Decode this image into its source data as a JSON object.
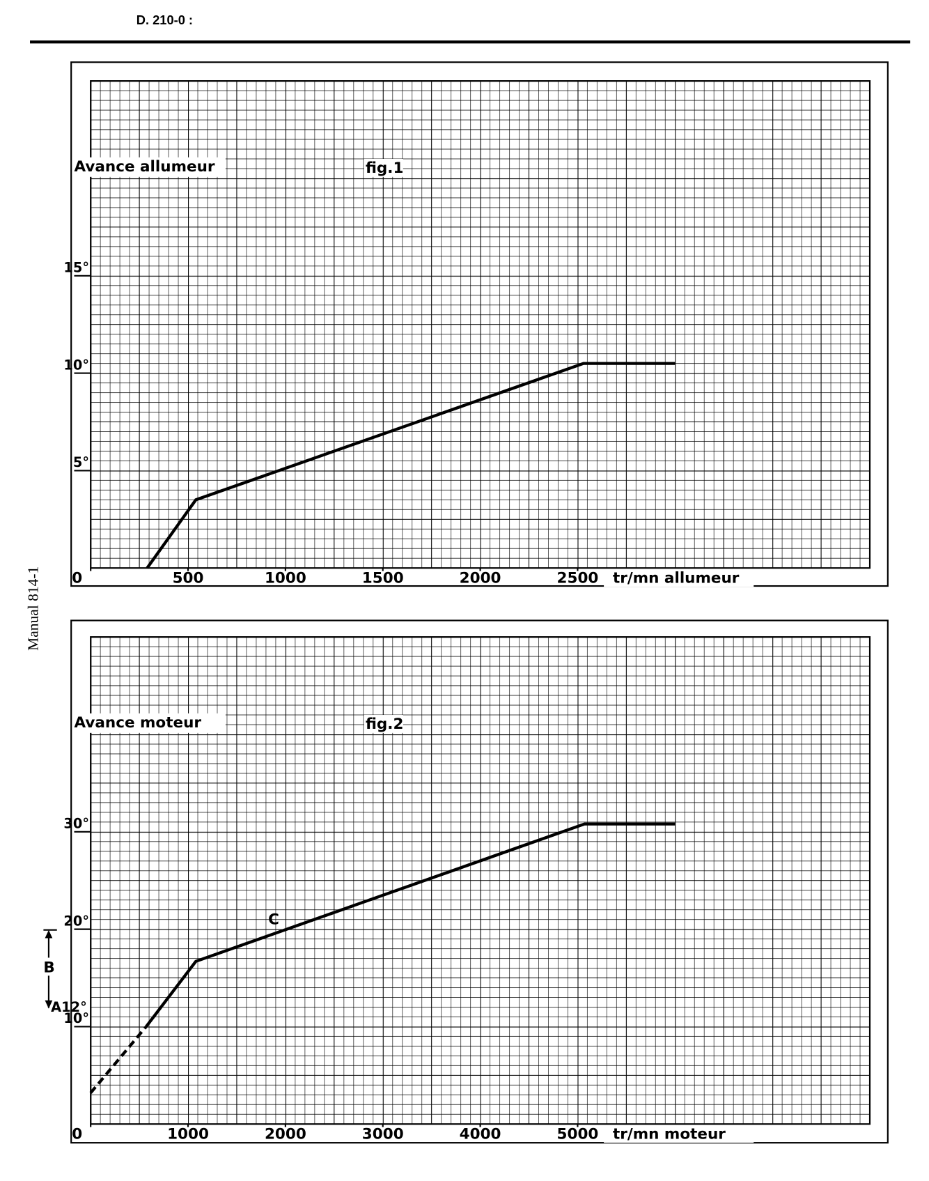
{
  "header": {
    "code": "D. 210-0 :"
  },
  "side_text": "Manual 814-1",
  "chart_data": [
    {
      "type": "line",
      "title": "fig.1",
      "y_label": "Avance allumeur",
      "x_label": "tr/mn allumeur",
      "xlim": [
        0,
        4000
      ],
      "ylim": [
        0,
        25
      ],
      "xticks": [
        0,
        500,
        1000,
        1500,
        2000,
        2500
      ],
      "yticks": [
        {
          "value": 5,
          "label": "5°"
        },
        {
          "value": 10,
          "label": "10°"
        },
        {
          "value": 15,
          "label": "15°"
        }
      ],
      "grid": true,
      "series": [
        {
          "color": "#000000",
          "style": "solid",
          "x": [
            290,
            540,
            2530,
            3000
          ],
          "values": [
            0,
            3.5,
            10.5,
            10.5
          ]
        }
      ]
    },
    {
      "type": "line",
      "title": "fig.2",
      "y_label": "Avance moteur",
      "x_label": "tr/mn moteur",
      "xlim": [
        0,
        8000
      ],
      "ylim": [
        0,
        50
      ],
      "xticks": [
        0,
        1000,
        2000,
        3000,
        4000,
        5000
      ],
      "yticks": [
        {
          "value": 10,
          "label": "10°"
        },
        {
          "value": 20,
          "label": "20°"
        },
        {
          "value": 30,
          "label": "30°"
        }
      ],
      "grid": true,
      "annotations": [
        "C",
        "B",
        "A12°"
      ],
      "series": [
        {
          "color": "#000000",
          "style": "dashed",
          "x": [
            0,
            570
          ],
          "values": [
            3.2,
            10
          ]
        },
        {
          "color": "#000000",
          "style": "solid",
          "x": [
            570,
            1080,
            5070,
            6000
          ],
          "values": [
            10,
            16.7,
            30.8,
            30.8
          ]
        }
      ]
    }
  ]
}
